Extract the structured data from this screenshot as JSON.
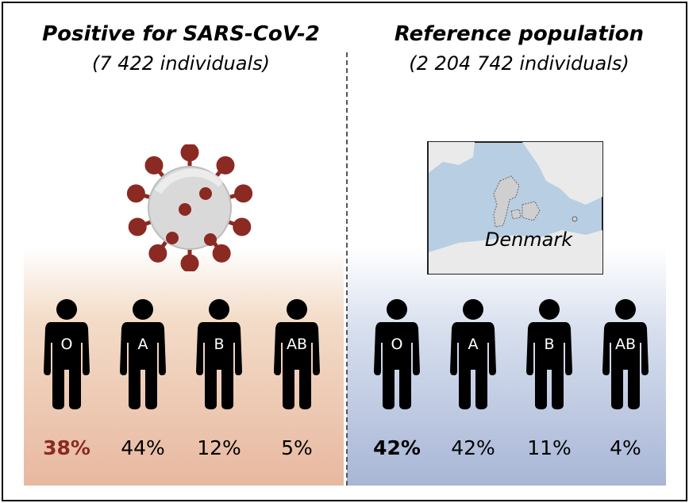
{
  "left_panel": {
    "title": "Positive for SARS-CoV-2",
    "count": "(7 422 individuals)",
    "groups": [
      {
        "label": "O",
        "percent": "38%"
      },
      {
        "label": "A",
        "percent": "44%"
      },
      {
        "label": "B",
        "percent": "12%"
      },
      {
        "label": "AB",
        "percent": "5%"
      }
    ]
  },
  "right_panel": {
    "title": "Reference population",
    "count": "(2 204 742 individuals)",
    "map_label": "Denmark",
    "groups": [
      {
        "label": "O",
        "percent": "42%"
      },
      {
        "label": "A",
        "percent": "42%"
      },
      {
        "label": "B",
        "percent": "11%"
      },
      {
        "label": "AB",
        "percent": "4%"
      }
    ]
  },
  "colors": {
    "highlight_left": "#8b2a22",
    "highlight_right": "#000000",
    "virus_spike": "#8b2a22",
    "virus_body": "#d9d9d9",
    "map_water": "#b7cee3",
    "map_land": "#eaeaea"
  },
  "icons": {
    "person": "person-icon",
    "virus": "virus-icon",
    "map": "map-icon"
  }
}
